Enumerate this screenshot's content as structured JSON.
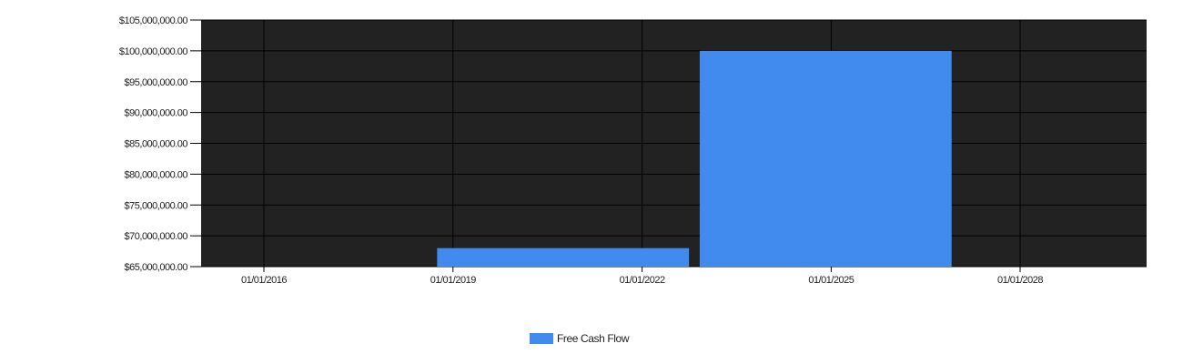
{
  "chart_data": {
    "type": "bar",
    "title": "",
    "xlabel": "",
    "ylabel": "",
    "x_tick_labels": [
      "01/01/2016",
      "01/01/2019",
      "01/01/2022",
      "01/01/2025",
      "01/01/2028"
    ],
    "y_tick_labels": [
      "$65,000,000.00",
      "$70,000,000.00",
      "$75,000,000.00",
      "$80,000,000.00",
      "$85,000,000.00",
      "$90,000,000.00",
      "$95,000,000.00",
      "$100,000,000.00",
      "$105,000,000.00"
    ],
    "ylim": [
      65000000,
      105000000
    ],
    "grid": true,
    "legend_position": "bottom",
    "series": [
      {
        "name": "Free Cash Flow",
        "color": "#418BEE",
        "bars": [
          {
            "x_start": "2018-10-01",
            "x_end": "2022-09-30",
            "value": 68000000
          },
          {
            "x_start": "2022-12-01",
            "x_end": "2026-11-30",
            "value": 100000000
          }
        ]
      }
    ],
    "colors": {
      "plot_background": "#222222",
      "grid": "#000000",
      "bar": "#418BEE"
    }
  }
}
